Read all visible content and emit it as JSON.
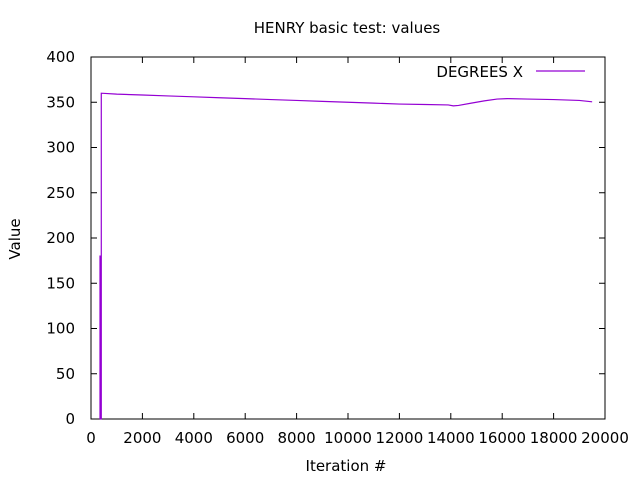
{
  "chart_data": {
    "type": "line",
    "title": "HENRY basic test: values",
    "xlabel": "Iteration #",
    "ylabel": "Value",
    "xlim": [
      0,
      20000
    ],
    "ylim": [
      0,
      400
    ],
    "xticks": [
      0,
      2000,
      4000,
      6000,
      8000,
      10000,
      12000,
      14000,
      16000,
      18000,
      20000
    ],
    "yticks": [
      0,
      50,
      100,
      150,
      200,
      250,
      300,
      350,
      400
    ],
    "grid": false,
    "legend_position": "top-right",
    "series": [
      {
        "name": "DEGREES X",
        "color": "#9400d3",
        "x": [
          350,
          350,
          360,
          360,
          400,
          400,
          1000,
          2000,
          3000,
          4000,
          5000,
          6000,
          7000,
          8000,
          9000,
          10000,
          11000,
          12000,
          13000,
          13900,
          14100,
          14300,
          14800,
          15300,
          15800,
          16200,
          17000,
          18000,
          19000,
          19500
        ],
        "y": [
          0,
          180,
          180,
          0,
          0,
          360,
          359,
          358,
          357,
          356,
          355,
          354,
          353,
          352,
          351,
          350,
          349,
          348,
          347.5,
          347,
          346,
          346.5,
          349,
          351.5,
          353.5,
          354,
          353.5,
          353,
          352,
          350.5
        ]
      }
    ]
  }
}
